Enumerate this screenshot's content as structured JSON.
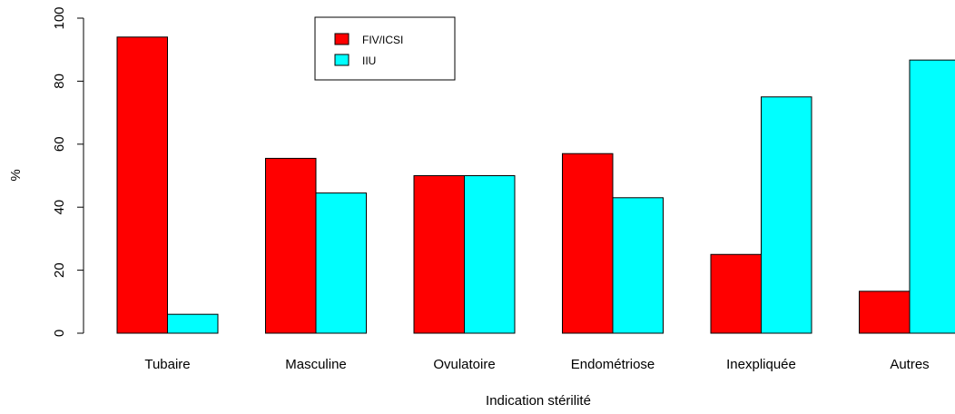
{
  "chart_data": {
    "type": "bar",
    "title": "",
    "xlabel": "Indication stérilité",
    "ylabel": "%",
    "ylim": [
      0,
      100
    ],
    "yticks": [
      0,
      20,
      40,
      60,
      80,
      100
    ],
    "grid": false,
    "legend_position": "top-center",
    "categories": [
      "Tubaire",
      "Masculine",
      "Ovulatoire",
      "Endométriose",
      "Inexpliquée",
      "Autres"
    ],
    "series": [
      {
        "name": "FIV/ICSI",
        "color": "#ff0000",
        "values": [
          94,
          55.5,
          50,
          57,
          25,
          13.3
        ]
      },
      {
        "name": "IIU",
        "color": "#00ffff",
        "values": [
          6,
          44.5,
          50,
          43,
          75,
          86.7
        ]
      }
    ]
  }
}
